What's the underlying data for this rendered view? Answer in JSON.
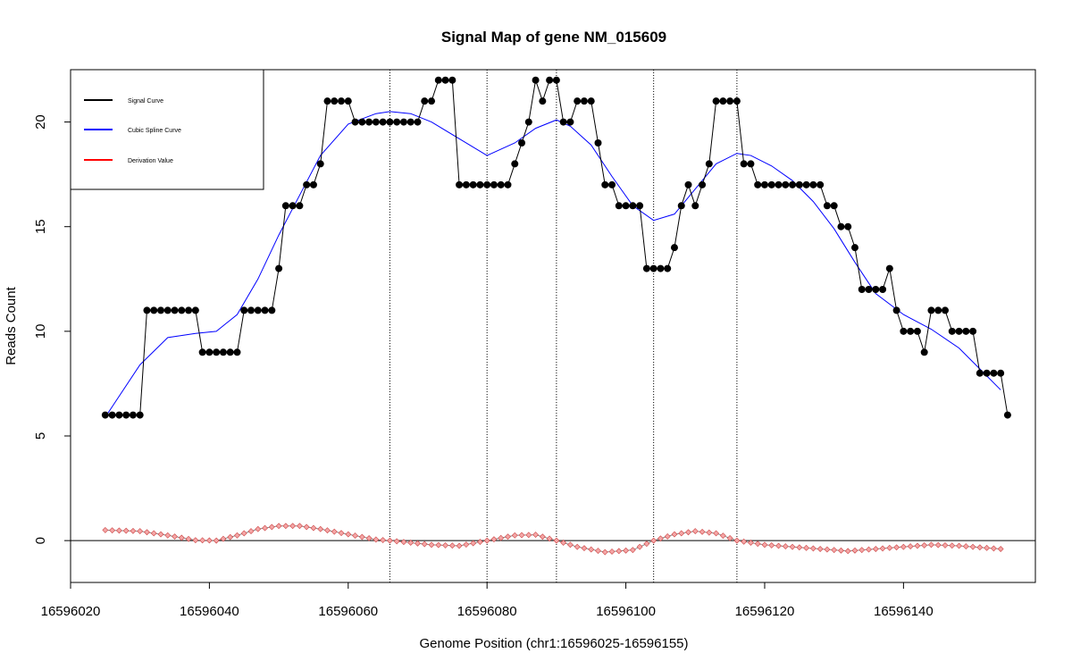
{
  "chart_data": {
    "type": "line",
    "title": "Signal Map of gene NM_015609",
    "xlabel": "Genome Position (chr1:16596025-16596155)",
    "ylabel": "Reads Count",
    "xlim": [
      16596020,
      16596159
    ],
    "ylim": [
      -2,
      22.5
    ],
    "x_ticks": [
      16596020,
      16596040,
      16596060,
      16596080,
      16596100,
      16596120,
      16596140
    ],
    "y_ticks": [
      0,
      5,
      10,
      15,
      20
    ],
    "grid": false,
    "legend_position": "top-left",
    "vlines": [
      16596066,
      16596080,
      16596090,
      16596104,
      16596116
    ],
    "hline": 0,
    "series": [
      {
        "name": "Signal Curve",
        "color": "#000000",
        "marker": "filled-circle",
        "x_start": 16596025,
        "x_step": 1,
        "values": [
          6,
          6,
          6,
          6,
          6,
          6,
          11,
          11,
          11,
          11,
          11,
          11,
          11,
          11,
          9,
          9,
          9,
          9,
          9,
          9,
          11,
          11,
          11,
          11,
          11,
          13,
          16,
          16,
          16,
          17,
          17,
          18,
          21,
          21,
          21,
          21,
          20,
          20,
          20,
          20,
          20,
          20,
          20,
          20,
          20,
          20,
          21,
          21,
          22,
          22,
          22,
          17,
          17,
          17,
          17,
          17,
          17,
          17,
          17,
          18,
          19,
          20,
          22,
          21,
          22,
          22,
          20,
          20,
          21,
          21,
          21,
          19,
          17,
          17,
          16,
          16,
          16,
          16,
          13,
          13,
          13,
          13,
          14,
          16,
          17,
          16,
          17,
          18,
          21,
          21,
          21,
          21,
          18,
          18,
          17,
          17,
          17,
          17,
          17,
          17,
          17,
          17,
          17,
          17,
          16,
          16,
          15,
          15,
          14,
          12,
          12,
          12,
          12,
          13,
          11,
          10,
          10,
          10,
          9,
          11,
          11,
          11,
          10,
          10,
          10,
          10,
          8,
          8,
          8,
          8,
          6
        ]
      },
      {
        "name": "Cubic Spline Curve",
        "color": "#0000ff",
        "x": [
          16596025,
          16596030,
          16596034,
          16596038,
          16596041,
          16596044,
          16596047,
          16596050,
          16596053,
          16596056,
          16596060,
          16596064,
          16596066,
          16596069,
          16596072,
          16596076,
          16596080,
          16596084,
          16596087,
          16596090,
          16596092,
          16596095,
          16596098,
          16596101,
          16596104,
          16596107,
          16596110,
          16596113,
          16596116,
          16596118,
          16596121,
          16596124,
          16596127,
          16596130,
          16596133,
          16596136,
          16596140,
          16596144,
          16596148,
          16596151,
          16596154
        ],
        "values": [
          5.9,
          8.4,
          9.7,
          9.9,
          10.0,
          10.8,
          12.5,
          14.6,
          16.5,
          18.4,
          19.9,
          20.4,
          20.5,
          20.4,
          20.0,
          19.2,
          18.4,
          19.0,
          19.7,
          20.1,
          19.8,
          18.9,
          17.4,
          16.0,
          15.3,
          15.6,
          16.8,
          18.0,
          18.5,
          18.4,
          17.9,
          17.2,
          16.2,
          14.9,
          13.3,
          11.8,
          10.8,
          10.1,
          9.2,
          8.2,
          7.2
        ]
      },
      {
        "name": "Derivation Value",
        "color": "#ff0000",
        "marker": "diamond",
        "x": [
          16596025,
          16596030,
          16596034,
          16596038,
          16596041,
          16596044,
          16596047,
          16596050,
          16596053,
          16596056,
          16596060,
          16596064,
          16596066,
          16596069,
          16596072,
          16596076,
          16596080,
          16596084,
          16596087,
          16596090,
          16596093,
          16596097,
          16596101,
          16596104,
          16596107,
          16596110,
          16596113,
          16596116,
          16596120,
          16596124,
          16596128,
          16596132,
          16596136,
          16596140,
          16596144,
          16596148,
          16596152,
          16596154
        ],
        "values": [
          0.5,
          0.45,
          0.25,
          0.02,
          0.0,
          0.25,
          0.55,
          0.7,
          0.7,
          0.55,
          0.3,
          0.05,
          0.0,
          -0.1,
          -0.2,
          -0.25,
          0.0,
          0.25,
          0.28,
          0.0,
          -0.3,
          -0.55,
          -0.45,
          0.0,
          0.3,
          0.45,
          0.35,
          0.0,
          -0.2,
          -0.3,
          -0.4,
          -0.5,
          -0.4,
          -0.3,
          -0.2,
          -0.25,
          -0.35,
          -0.4
        ]
      }
    ]
  }
}
